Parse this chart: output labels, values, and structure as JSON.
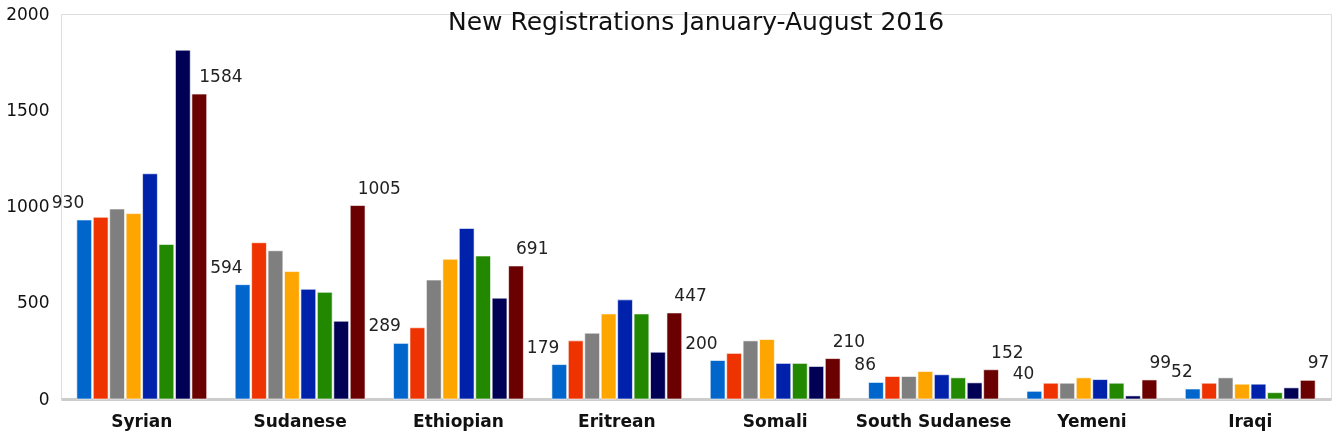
{
  "chart_data": {
    "type": "bar",
    "title": "New Registrations January-August 2016",
    "categories": [
      "Syrian",
      "Sudanese",
      "Ethiopian",
      "Eritrean",
      "Somali",
      "South Sudanese",
      "Yemeni",
      "Iraqi"
    ],
    "series": [
      {
        "color": "#0066cc",
        "values": [
          930,
          594,
          289,
          179,
          200,
          86,
          40,
          52
        ],
        "value_labels": [
          "930",
          "594",
          "289",
          "179",
          "200",
          "86",
          "40",
          "52"
        ]
      },
      {
        "color": "#ee3300",
        "values": [
          944,
          812,
          370,
          302,
          237,
          117,
          82,
          82
        ]
      },
      {
        "color": "#7f7f7f",
        "values": [
          987,
          770,
          618,
          342,
          302,
          117,
          82,
          110
        ]
      },
      {
        "color": "#ffa500",
        "values": [
          963,
          662,
          726,
          442,
          309,
          143,
          110,
          77
        ]
      },
      {
        "color": "#0022aa",
        "values": [
          1170,
          570,
          886,
          515,
          185,
          126,
          101,
          77
        ]
      },
      {
        "color": "#228800",
        "values": [
          803,
          554,
          743,
          442,
          185,
          110,
          82,
          33
        ]
      },
      {
        "color": "#000055",
        "values": [
          1812,
          404,
          524,
          243,
          169,
          84,
          16,
          58
        ]
      },
      {
        "color": "#6b0000",
        "values": [
          1584,
          1005,
          691,
          447,
          210,
          152,
          99,
          97
        ],
        "value_labels": [
          "1584",
          "1005",
          "691",
          "447",
          "210",
          "152",
          "99",
          "97"
        ]
      }
    ],
    "ylim": [
      0,
      2000
    ],
    "yticks": [
      0,
      500,
      1000,
      1500,
      2000
    ],
    "grid": false,
    "legend": false
  }
}
